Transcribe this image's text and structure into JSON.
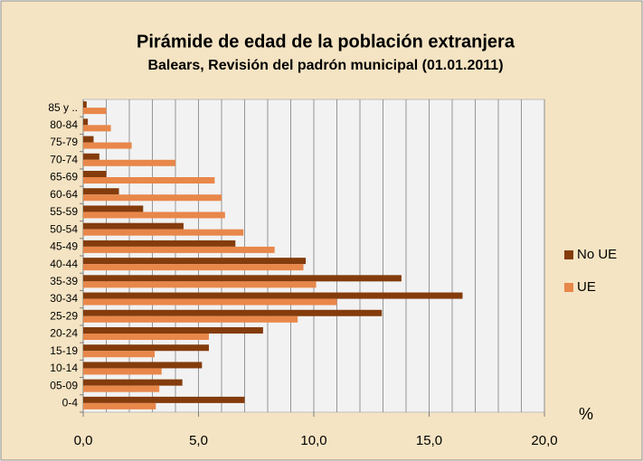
{
  "chart_data": {
    "type": "barh",
    "title": "Pirámide de edad de la población extranjera",
    "subtitle": "Balears, Revisión del padrón municipal (01.01.2011)",
    "x_label": "%",
    "categories": [
      "0-4",
      "05-09",
      "10-14",
      "15-19",
      "20-24",
      "25-29",
      "30-34",
      "35-39",
      "40-44",
      "45-49",
      "50-54",
      "55-59",
      "60-64",
      "65-69",
      "70-74",
      "75-79",
      "80-84",
      "85 y .."
    ],
    "series": [
      {
        "name": "No UE",
        "color": "#843c0c",
        "values": [
          7.0,
          4.3,
          5.15,
          5.45,
          7.8,
          12.95,
          16.45,
          13.8,
          9.65,
          6.6,
          4.35,
          2.6,
          1.55,
          1.0,
          0.7,
          0.45,
          0.2,
          0.15
        ]
      },
      {
        "name": "UE",
        "color": "#e8874a",
        "values": [
          3.15,
          3.3,
          3.4,
          3.1,
          5.45,
          9.3,
          11.0,
          10.1,
          9.55,
          8.3,
          6.95,
          6.15,
          6.0,
          5.7,
          4.0,
          2.1,
          1.2,
          1.0
        ]
      }
    ],
    "xlim": [
      0,
      20
    ],
    "xticks": [
      {
        "value": 0,
        "label": "0,0"
      },
      {
        "value": 5,
        "label": "5,0"
      },
      {
        "value": 10,
        "label": "10,0"
      },
      {
        "value": 15,
        "label": "15,0"
      },
      {
        "value": 20,
        "label": "20,0"
      }
    ],
    "xgrid": [
      1,
      2,
      3,
      4,
      5,
      6,
      7,
      8,
      9,
      10,
      11,
      12,
      13,
      14,
      15,
      16,
      17,
      18,
      19,
      20
    ],
    "legend": "right"
  }
}
